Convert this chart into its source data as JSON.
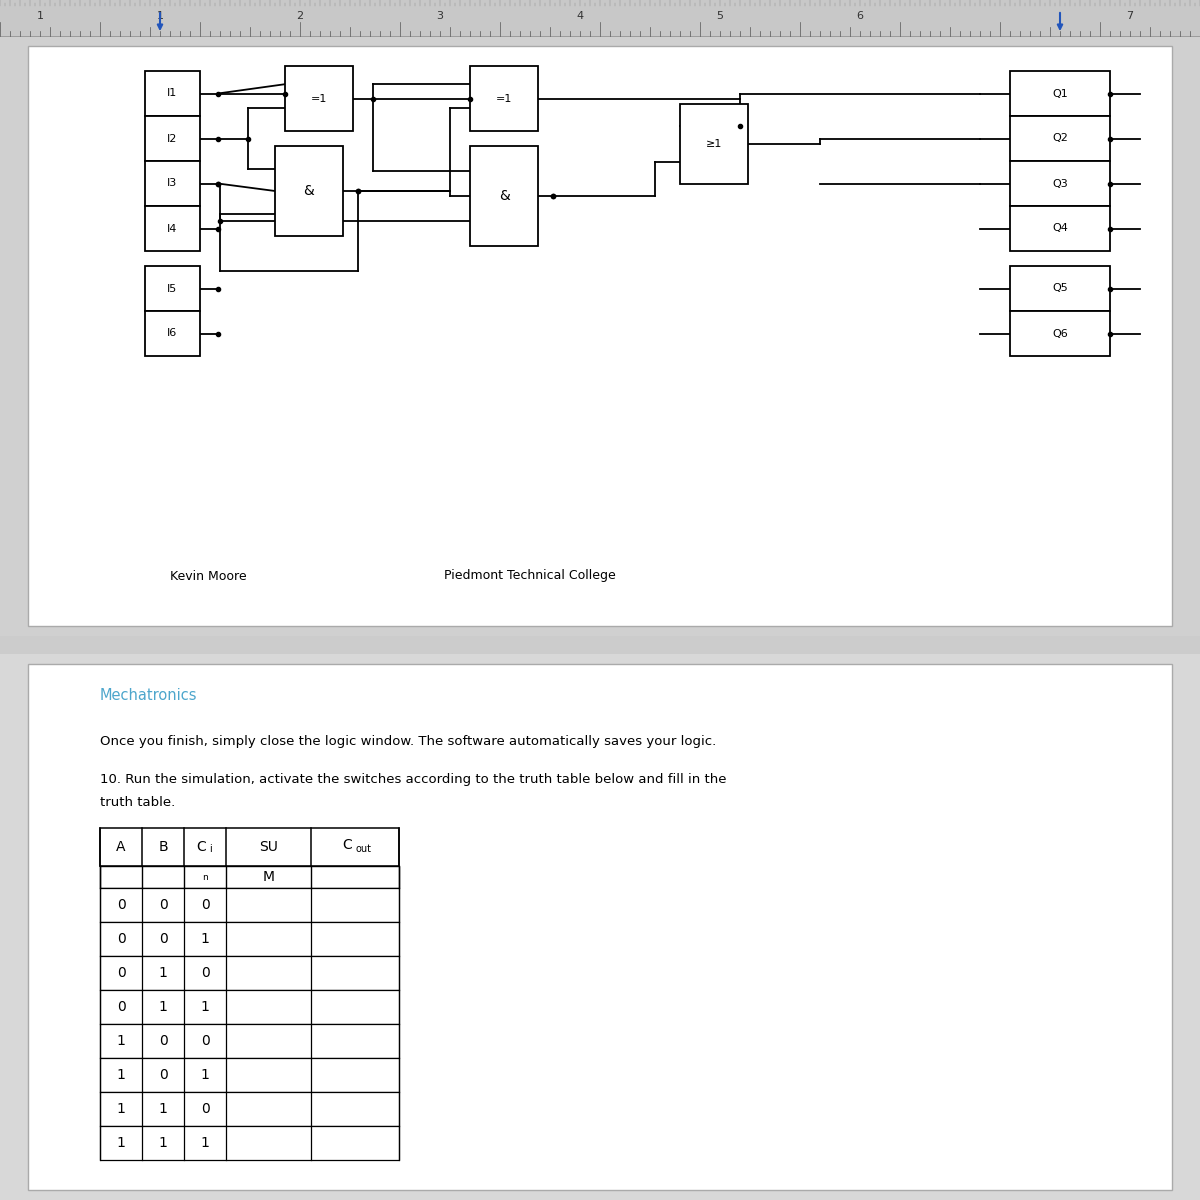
{
  "author": "Kevin Moore",
  "institution": "Piedmont Technical College",
  "subject_color": "#4da6cc",
  "subject": "Mechatronics",
  "instruction1": "Once you finish, simply close the logic window. The software automatically saves your logic.",
  "instruction2": "10. Run the simulation, activate the switches according to the truth table below and fill in the",
  "instruction2b": "truth table.",
  "truth_rows": [
    [
      "0",
      "0",
      "0",
      "",
      ""
    ],
    [
      "0",
      "0",
      "1",
      "",
      ""
    ],
    [
      "0",
      "1",
      "0",
      "",
      ""
    ],
    [
      "0",
      "1",
      "1",
      "",
      ""
    ],
    [
      "1",
      "0",
      "0",
      "",
      ""
    ],
    [
      "1",
      "0",
      "1",
      "",
      ""
    ],
    [
      "1",
      "1",
      "0",
      "",
      ""
    ],
    [
      "1",
      "1",
      "1",
      "",
      ""
    ]
  ],
  "bg_gray": "#cccccc",
  "panel_top_bg": "#d8d8d8",
  "panel_bot_bg": "#e0e0e0",
  "white": "#ffffff",
  "ruler_bg": "#c0c0c0",
  "ruler_tick_color": "#555555",
  "input_labels": [
    "I1",
    "I2",
    "I3",
    "I4",
    "I5",
    "I6"
  ],
  "output_labels": [
    "Q1",
    "Q2",
    "Q3",
    "Q4",
    "Q5",
    "Q6"
  ]
}
